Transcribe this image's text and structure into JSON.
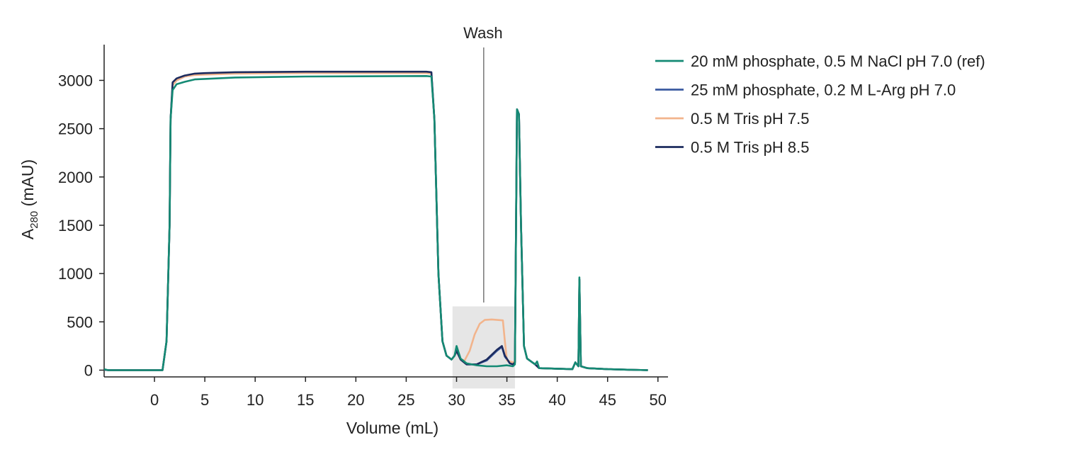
{
  "chart_data": {
    "type": "line",
    "xlabel": "Volume (mL)",
    "ylabel_main": "A",
    "ylabel_sub": "280",
    "ylabel_unit": " (mAU)",
    "xlim": [
      -5,
      51
    ],
    "ylim": [
      -70,
      3370
    ],
    "xticks": [
      0,
      5,
      10,
      15,
      20,
      25,
      30,
      35,
      40,
      45,
      50
    ],
    "yticks": [
      0,
      500,
      1000,
      1500,
      2000,
      2500,
      3000
    ],
    "legend_position": "right",
    "annotations": {
      "wash_label": "Wash",
      "wash_x": 32.7,
      "highlight_region": {
        "x": [
          29.6,
          35.8
        ],
        "y": [
          -190,
          660
        ]
      }
    },
    "series": [
      {
        "name": "20 mM phosphate, 0.5 M NaCl pH 7.0 (ref)",
        "color": "#148a74",
        "points": [
          [
            -5,
            10
          ],
          [
            -4.6,
            0
          ],
          [
            0.8,
            0
          ],
          [
            1.2,
            300
          ],
          [
            1.5,
            1500
          ],
          [
            1.6,
            2600
          ],
          [
            1.8,
            2900
          ],
          [
            2.2,
            2960
          ],
          [
            3,
            2985
          ],
          [
            4,
            3010
          ],
          [
            5,
            3015
          ],
          [
            8,
            3030
          ],
          [
            15,
            3040
          ],
          [
            27,
            3045
          ],
          [
            27.5,
            3040
          ],
          [
            27.8,
            2600
          ],
          [
            28.2,
            1000
          ],
          [
            28.6,
            300
          ],
          [
            29,
            150
          ],
          [
            29.5,
            110
          ],
          [
            29.8,
            150
          ],
          [
            30,
            250
          ],
          [
            30.4,
            120
          ],
          [
            31,
            70
          ],
          [
            32,
            50
          ],
          [
            33,
            40
          ],
          [
            34,
            40
          ],
          [
            35,
            50
          ],
          [
            35.6,
            40
          ],
          [
            35.8,
            60
          ],
          [
            36,
            2700
          ],
          [
            36.2,
            2650
          ],
          [
            36.4,
            1500
          ],
          [
            36.7,
            250
          ],
          [
            37,
            120
          ],
          [
            37.8,
            60
          ],
          [
            38,
            90
          ],
          [
            38.2,
            20
          ],
          [
            40,
            15
          ],
          [
            41.5,
            10
          ],
          [
            41.8,
            80
          ],
          [
            42.1,
            40
          ],
          [
            42.2,
            960
          ],
          [
            42.35,
            40
          ],
          [
            43,
            20
          ],
          [
            45,
            10
          ],
          [
            49,
            0
          ]
        ]
      },
      {
        "name": "25 mM phosphate, 0.2 M L-Arg pH 7.0",
        "color": "#3a5aa0",
        "points": [
          [
            -5,
            5
          ],
          [
            -4.6,
            0
          ],
          [
            0.8,
            0
          ],
          [
            1.2,
            300
          ],
          [
            1.5,
            1500
          ],
          [
            1.6,
            2600
          ],
          [
            1.8,
            2950
          ],
          [
            2.2,
            3000
          ],
          [
            3,
            3040
          ],
          [
            4,
            3060
          ],
          [
            5,
            3065
          ],
          [
            8,
            3075
          ],
          [
            15,
            3080
          ],
          [
            27,
            3080
          ],
          [
            27.5,
            3075
          ],
          [
            27.8,
            2600
          ],
          [
            28.2,
            1000
          ],
          [
            28.6,
            300
          ],
          [
            29,
            150
          ],
          [
            29.5,
            110
          ],
          [
            29.8,
            150
          ],
          [
            30,
            200
          ],
          [
            30.4,
            110
          ],
          [
            31,
            60
          ],
          [
            32,
            60
          ],
          [
            33,
            100
          ],
          [
            34,
            200
          ],
          [
            34.5,
            240
          ],
          [
            34.8,
            140
          ],
          [
            35.3,
            70
          ],
          [
            35.6,
            60
          ],
          [
            35.8,
            80
          ],
          [
            36,
            2700
          ],
          [
            36.2,
            2650
          ],
          [
            36.4,
            1500
          ],
          [
            36.7,
            250
          ],
          [
            37,
            120
          ],
          [
            37.8,
            60
          ],
          [
            38.2,
            20
          ],
          [
            40,
            15
          ],
          [
            41.5,
            10
          ],
          [
            41.8,
            80
          ],
          [
            42.1,
            40
          ],
          [
            42.2,
            940
          ],
          [
            42.35,
            40
          ],
          [
            43,
            20
          ],
          [
            45,
            10
          ],
          [
            49,
            0
          ]
        ]
      },
      {
        "name": "0.5 M Tris pH 7.5",
        "color": "#f2b48c",
        "points": [
          [
            -5,
            5
          ],
          [
            -4.6,
            0
          ],
          [
            0.8,
            0
          ],
          [
            1.2,
            300
          ],
          [
            1.5,
            1500
          ],
          [
            1.6,
            2600
          ],
          [
            1.8,
            2950
          ],
          [
            2.2,
            3000
          ],
          [
            3,
            3040
          ],
          [
            4,
            3055
          ],
          [
            5,
            3060
          ],
          [
            8,
            3070
          ],
          [
            15,
            3075
          ],
          [
            27,
            3075
          ],
          [
            27.5,
            3070
          ],
          [
            27.8,
            2600
          ],
          [
            28.2,
            1000
          ],
          [
            28.6,
            300
          ],
          [
            29,
            150
          ],
          [
            29.5,
            110
          ],
          [
            29.8,
            150
          ],
          [
            30,
            200
          ],
          [
            30.4,
            110
          ],
          [
            30.8,
            100
          ],
          [
            31.3,
            200
          ],
          [
            31.8,
            370
          ],
          [
            32.3,
            480
          ],
          [
            32.8,
            520
          ],
          [
            33.5,
            525
          ],
          [
            34.6,
            515
          ],
          [
            34.8,
            300
          ],
          [
            35,
            100
          ],
          [
            35.6,
            80
          ],
          [
            35.8,
            90
          ],
          [
            36,
            2700
          ],
          [
            36.2,
            2650
          ],
          [
            36.4,
            1500
          ],
          [
            36.7,
            250
          ],
          [
            37,
            120
          ],
          [
            37.8,
            60
          ],
          [
            38.2,
            20
          ],
          [
            40,
            15
          ],
          [
            41.5,
            10
          ],
          [
            41.8,
            80
          ],
          [
            42.1,
            40
          ],
          [
            42.2,
            940
          ],
          [
            42.35,
            40
          ],
          [
            43,
            20
          ],
          [
            45,
            10
          ],
          [
            49,
            0
          ]
        ]
      },
      {
        "name": "0.5 M Tris pH 8.5",
        "color": "#1c2b5e",
        "points": [
          [
            -5,
            5
          ],
          [
            -4.6,
            0
          ],
          [
            0.8,
            0
          ],
          [
            1.2,
            300
          ],
          [
            1.5,
            1500
          ],
          [
            1.6,
            2600
          ],
          [
            1.8,
            2980
          ],
          [
            2.2,
            3020
          ],
          [
            3,
            3050
          ],
          [
            4,
            3070
          ],
          [
            5,
            3075
          ],
          [
            8,
            3085
          ],
          [
            15,
            3090
          ],
          [
            27,
            3090
          ],
          [
            27.5,
            3085
          ],
          [
            27.8,
            2600
          ],
          [
            28.2,
            1000
          ],
          [
            28.6,
            300
          ],
          [
            29,
            150
          ],
          [
            29.5,
            110
          ],
          [
            29.8,
            150
          ],
          [
            30,
            200
          ],
          [
            30.4,
            110
          ],
          [
            31,
            60
          ],
          [
            32,
            60
          ],
          [
            33,
            110
          ],
          [
            34,
            210
          ],
          [
            34.5,
            250
          ],
          [
            34.8,
            150
          ],
          [
            35.3,
            70
          ],
          [
            35.6,
            60
          ],
          [
            35.8,
            80
          ],
          [
            36,
            2700
          ],
          [
            36.2,
            2650
          ],
          [
            36.4,
            1500
          ],
          [
            36.7,
            250
          ],
          [
            37,
            120
          ],
          [
            37.8,
            60
          ],
          [
            38.2,
            20
          ],
          [
            40,
            15
          ],
          [
            41.5,
            10
          ],
          [
            41.8,
            80
          ],
          [
            42.1,
            40
          ],
          [
            42.2,
            940
          ],
          [
            42.35,
            40
          ],
          [
            43,
            20
          ],
          [
            45,
            10
          ],
          [
            49,
            0
          ]
        ]
      }
    ]
  }
}
